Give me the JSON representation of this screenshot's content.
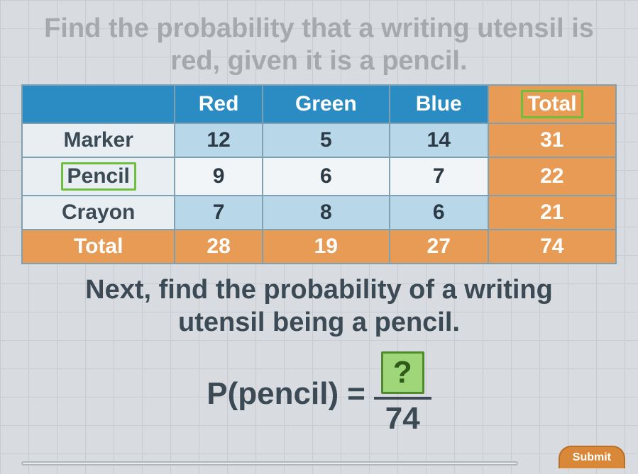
{
  "question": "Find the probability that a writing utensil is red, given it is a pencil.",
  "table": {
    "columns": [
      "",
      "Red",
      "Green",
      "Blue",
      "Total"
    ],
    "rows": [
      {
        "label": "Marker",
        "cells": [
          "12",
          "5",
          "14",
          "31"
        ]
      },
      {
        "label": "Pencil",
        "cells": [
          "9",
          "6",
          "7",
          "22"
        ]
      },
      {
        "label": "Crayon",
        "cells": [
          "7",
          "8",
          "6",
          "21"
        ]
      },
      {
        "label": "Total",
        "cells": [
          "28",
          "19",
          "27",
          "74"
        ]
      }
    ],
    "highlight_row_label": "Pencil",
    "highlight_col_label": "Total",
    "header_blue_bg": "#2b8cc4",
    "header_orange_bg": "#e79b54",
    "cell_blue_bg": "#b8d7e8",
    "cell_white_bg": "#f2f5f7",
    "cell_orange_bg": "#e79b54",
    "border_color": "#7ea0b0",
    "highlight_border": "#6fbf3f"
  },
  "instruction_line1": "Next, find the probability of a writing",
  "instruction_line2": "utensil being a pencil.",
  "formula": {
    "lhs": "P(pencil)",
    "eq": "=",
    "numerator": "?",
    "denominator": "74",
    "answer_bg": "#9fd67a",
    "answer_border": "#4f8a2c"
  },
  "submit_label": "Submit",
  "colors": {
    "page_bg": "#d8dce0",
    "grid": "#c8ccd0",
    "text_faded": "#a5a9ad",
    "text_main": "#3b4a55"
  }
}
